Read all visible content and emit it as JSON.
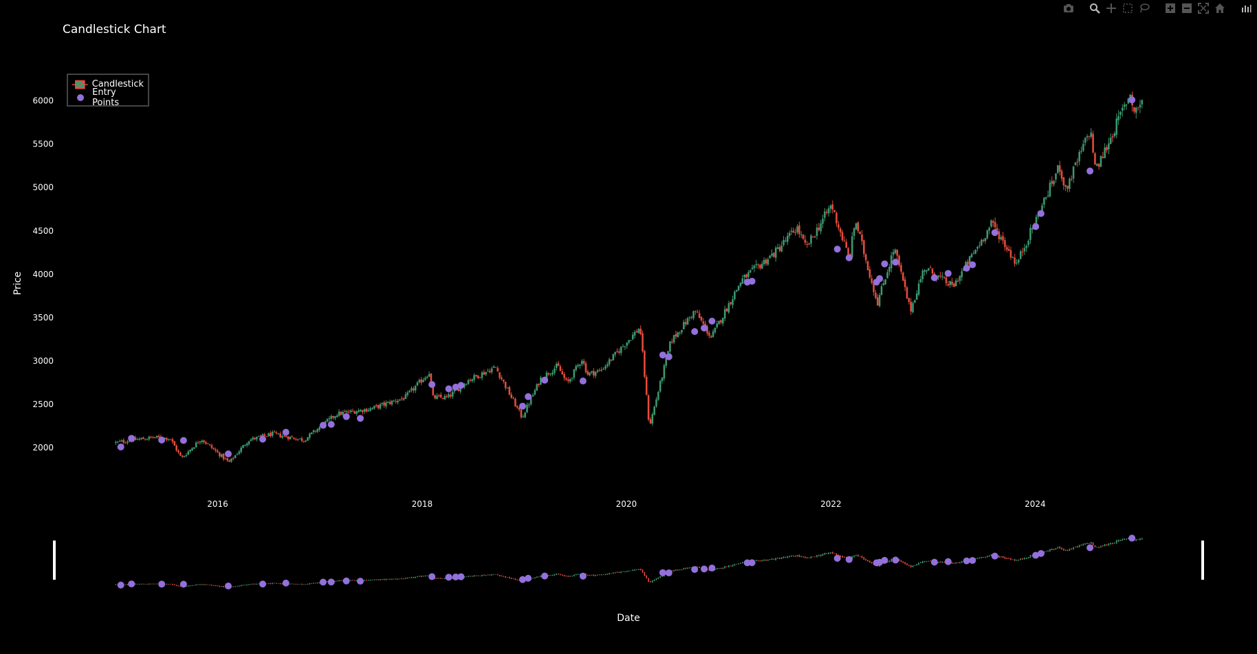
{
  "modebar": {
    "icons": [
      "camera-icon",
      "zoom-icon",
      "pan-icon",
      "box-select-icon",
      "lasso-icon",
      "zoom-in-icon",
      "zoom-out-icon",
      "autoscale-icon",
      "reset-axes-icon",
      "plotly-logo-icon"
    ]
  },
  "colors": {
    "background": "#000000",
    "increasing": "#3d9970",
    "decreasing": "#e74c3c",
    "entry": "#9370db",
    "text": "#ffffff"
  },
  "chart_data": {
    "type": "candlestick",
    "title": "Candlestick Chart",
    "xlabel": "Date",
    "ylabel": "Price",
    "ylim": [
      1550,
      6400
    ],
    "xlim": [
      "2015-01-01",
      "2025-01-20"
    ],
    "x_ticks": [
      "2016",
      "2018",
      "2020",
      "2022",
      "2024"
    ],
    "y_ticks": [
      "2000",
      "2500",
      "3000",
      "3500",
      "4000",
      "4500",
      "5000",
      "5500",
      "6000"
    ],
    "grid": false,
    "legend_position": "top-left",
    "rangeslider": true,
    "series": [
      {
        "name": "Candlestick",
        "type": "candlestick",
        "approx_close_path": [
          [
            "2015-01-02",
            2060
          ],
          [
            "2015-03-01",
            2090
          ],
          [
            "2015-05-20",
            2120
          ],
          [
            "2015-07-15",
            2110
          ],
          [
            "2015-08-25",
            1880
          ],
          [
            "2015-11-03",
            2105
          ],
          [
            "2016-02-11",
            1830
          ],
          [
            "2016-04-20",
            2090
          ],
          [
            "2016-07-15",
            2160
          ],
          [
            "2016-11-04",
            2090
          ],
          [
            "2017-03-01",
            2390
          ],
          [
            "2017-07-01",
            2450
          ],
          [
            "2017-11-01",
            2580
          ],
          [
            "2018-01-26",
            2870
          ],
          [
            "2018-02-08",
            2580
          ],
          [
            "2018-04-02",
            2580
          ],
          [
            "2018-06-15",
            2780
          ],
          [
            "2018-09-20",
            2930
          ],
          [
            "2018-12-24",
            2350
          ],
          [
            "2019-03-01",
            2800
          ],
          [
            "2019-04-30",
            2945
          ],
          [
            "2019-06-03",
            2740
          ],
          [
            "2019-07-26",
            3025
          ],
          [
            "2019-08-15",
            2850
          ],
          [
            "2019-10-01",
            2890
          ],
          [
            "2020-02-19",
            3390
          ],
          [
            "2020-03-23",
            2240
          ],
          [
            "2020-06-08",
            3230
          ],
          [
            "2020-09-02",
            3580
          ],
          [
            "2020-10-30",
            3270
          ],
          [
            "2021-02-15",
            3930
          ],
          [
            "2021-06-15",
            4250
          ],
          [
            "2021-09-02",
            4540
          ],
          [
            "2021-10-04",
            4300
          ],
          [
            "2022-01-03",
            4800
          ],
          [
            "2022-03-08",
            4170
          ],
          [
            "2022-03-29",
            4630
          ],
          [
            "2022-06-16",
            3670
          ],
          [
            "2022-08-16",
            4305
          ],
          [
            "2022-10-12",
            3580
          ],
          [
            "2022-12-01",
            4080
          ],
          [
            "2023-03-13",
            3855
          ],
          [
            "2023-07-31",
            4590
          ],
          [
            "2023-10-27",
            4120
          ],
          [
            "2024-03-28",
            5250
          ],
          [
            "2024-04-19",
            4970
          ],
          [
            "2024-07-16",
            5670
          ],
          [
            "2024-08-05",
            5190
          ],
          [
            "2024-12-06",
            6090
          ],
          [
            "2024-12-20",
            5870
          ],
          [
            "2025-01-17",
            5997
          ]
        ]
      },
      {
        "name": "Entry Points",
        "type": "scatter",
        "points": [
          [
            "2015-01-20",
            2010
          ],
          [
            "2015-02-27",
            2110
          ],
          [
            "2015-06-15",
            2090
          ],
          [
            "2015-09-01",
            2085
          ],
          [
            "2016-02-08",
            1930
          ],
          [
            "2016-06-10",
            2100
          ],
          [
            "2016-09-01",
            2180
          ],
          [
            "2017-01-12",
            2260
          ],
          [
            "2017-02-10",
            2270
          ],
          [
            "2017-04-05",
            2360
          ],
          [
            "2017-05-25",
            2340
          ],
          [
            "2018-02-05",
            2730
          ],
          [
            "2018-04-06",
            2680
          ],
          [
            "2018-05-01",
            2700
          ],
          [
            "2018-05-20",
            2720
          ],
          [
            "2018-12-26",
            2480
          ],
          [
            "2019-01-15",
            2590
          ],
          [
            "2019-03-15",
            2780
          ],
          [
            "2019-07-30",
            2770
          ],
          [
            "2020-05-10",
            3070
          ],
          [
            "2020-06-01",
            3050
          ],
          [
            "2020-09-01",
            3340
          ],
          [
            "2020-10-05",
            3380
          ],
          [
            "2020-11-02",
            3460
          ],
          [
            "2021-03-08",
            3910
          ],
          [
            "2021-03-25",
            3920
          ],
          [
            "2022-01-24",
            4290
          ],
          [
            "2022-03-07",
            4190
          ],
          [
            "2022-06-13",
            3910
          ],
          [
            "2022-06-24",
            3950
          ],
          [
            "2022-07-12",
            4120
          ],
          [
            "2022-08-20",
            4140
          ],
          [
            "2023-01-06",
            3960
          ],
          [
            "2023-02-24",
            4010
          ],
          [
            "2023-05-01",
            4070
          ],
          [
            "2023-05-22",
            4110
          ],
          [
            "2023-08-10",
            4480
          ],
          [
            "2024-01-03",
            4550
          ],
          [
            "2024-01-22",
            4700
          ],
          [
            "2024-07-15",
            5190
          ],
          [
            "2024-12-12",
            6010
          ]
        ]
      }
    ]
  }
}
